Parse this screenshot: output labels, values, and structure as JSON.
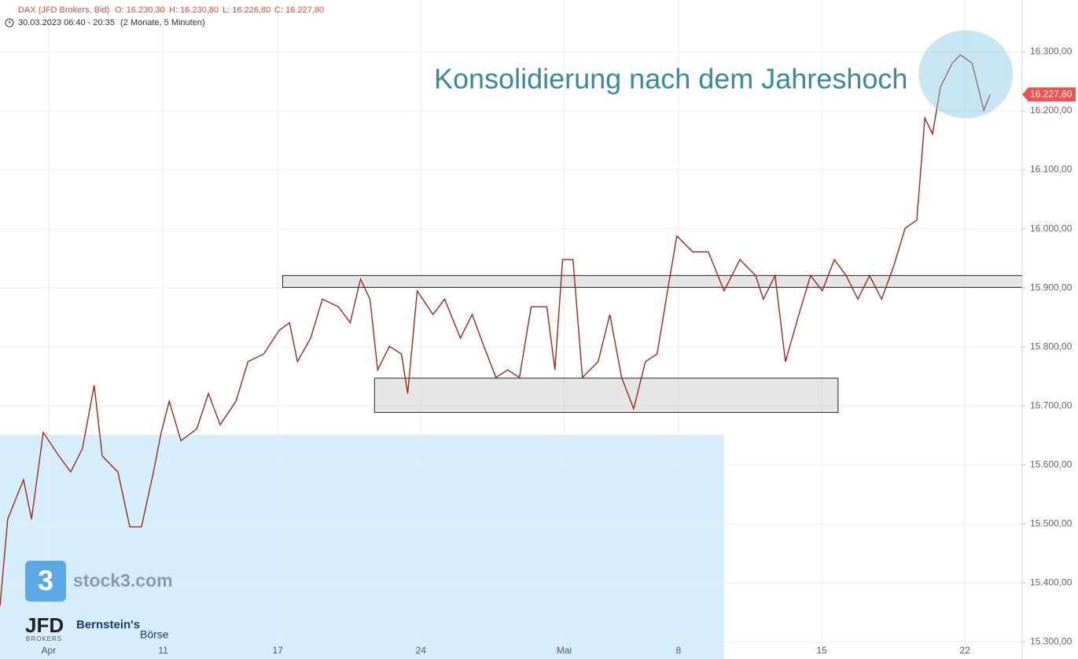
{
  "chart_data": {
    "type": "line",
    "title": "DAX (JFD Brokers, Bid)",
    "ohlc": [
      "O: 16.230,30",
      "H: 16.230,80",
      "L: 16.226,80",
      "C: 16.227,80"
    ],
    "subtitle": "30.03.2023 06:40 - 20:35",
    "period": "(2 Monate, 5 Minuten)",
    "annotation": "Konsolidierung nach dem Jahreshoch",
    "color": "#9b2a1c",
    "x": [
      -1.7,
      -1.43,
      -0.88,
      -0.6,
      -0.19,
      0.36,
      0.77,
      1.18,
      1.59,
      1.87,
      2.42,
      2.83,
      3.24,
      3.66,
      3.93,
      4.21,
      4.62,
      5.17,
      5.58,
      5.99,
      6.54,
      6.96,
      7.51,
      8.05,
      8.41,
      8.69,
      9.15,
      9.56,
      10.12,
      10.53,
      10.89,
      11.22,
      11.49,
      11.9,
      12.32,
      12.54,
      12.87,
      13.42,
      13.83,
      14.38,
      14.79,
      15.2,
      15.62,
      16.03,
      16.44,
      16.85,
      17.4,
      17.68,
      17.95,
      18.31,
      18.64,
      19.19,
      19.6,
      20.01,
      20.43,
      20.84,
      21.25,
      21.66,
      21.94,
      22.49,
      23.04,
      23.59,
      24.14,
      24.69,
      24.96,
      25.37,
      25.73,
      26.2,
      26.61,
      27.02,
      27.44,
      27.85,
      28.26,
      28.67,
      29.09,
      29.5,
      29.91,
      30.32,
      30.6,
      30.87,
      31.15,
      31.56,
      31.84,
      32.25,
      32.66,
      32.88
    ],
    "values": [
      15361,
      15508,
      15575,
      15508,
      15655,
      15615,
      15588,
      15628,
      15735,
      15615,
      15588,
      15495,
      15495,
      15588,
      15655,
      15708,
      15641,
      15661,
      15721,
      15668,
      15708,
      15775,
      15788,
      15828,
      15841,
      15775,
      15815,
      15881,
      15868,
      15841,
      15915,
      15881,
      15761,
      15801,
      15788,
      15721,
      15895,
      15855,
      15881,
      15815,
      15855,
      15801,
      15748,
      15761,
      15748,
      15868,
      15868,
      15761,
      15948,
      15948,
      15748,
      15775,
      15855,
      15748,
      15695,
      15775,
      15788,
      15908,
      15988,
      15961,
      15961,
      15895,
      15948,
      15921,
      15881,
      15921,
      15775,
      15855,
      15921,
      15895,
      15948,
      15921,
      15881,
      15921,
      15881,
      15935,
      16001,
      16015,
      16188,
      16161,
      16241,
      16281,
      16295,
      16281,
      16201,
      16228
    ],
    "xlim": [
      -1.7,
      34.0
    ],
    "xticks": [
      {
        "value": 0,
        "label": "Apr"
      },
      {
        "value": 4,
        "label": "11"
      },
      {
        "value": 8,
        "label": "17"
      },
      {
        "value": 13,
        "label": "24"
      },
      {
        "value": 18,
        "label": "Mai"
      },
      {
        "value": 22,
        "label": "8"
      },
      {
        "value": 27,
        "label": "15"
      },
      {
        "value": 32,
        "label": "22"
      }
    ],
    "ylim": [
      15271,
      16388
    ],
    "yticks": [
      {
        "value": 15300,
        "label": "15.300,00"
      },
      {
        "value": 15400,
        "label": "15.400,00"
      },
      {
        "value": 15500,
        "label": "15.500,00"
      },
      {
        "value": 15600,
        "label": "15.600,00"
      },
      {
        "value": 15700,
        "label": "15.700,00"
      },
      {
        "value": 15800,
        "label": "15.800,00"
      },
      {
        "value": 15900,
        "label": "15.900,00"
      },
      {
        "value": 16000,
        "label": "16.000,00"
      },
      {
        "value": 16100,
        "label": "16.100,00"
      },
      {
        "value": 16200,
        "label": "16.200,00"
      },
      {
        "value": 16300,
        "label": "16.300,00"
      }
    ],
    "grid": true,
    "last_price": {
      "value": 16227.8,
      "label": "16.227,80"
    },
    "zones": [
      {
        "x": [
          8.17,
          34.0
        ],
        "y": [
          15901,
          15921
        ]
      },
      {
        "x": [
          11.38,
          27.57
        ],
        "y": [
          15689,
          15747
        ]
      }
    ],
    "area": {
      "x": [
        -1.7,
        23.59
      ],
      "y": [
        15271,
        15651
      ]
    },
    "highlight": {
      "x": 32.03,
      "y": 16262
    },
    "logos": [
      "stock3.com",
      "JFD",
      "BROKERS",
      "Bernstein's",
      "Börse"
    ]
  }
}
